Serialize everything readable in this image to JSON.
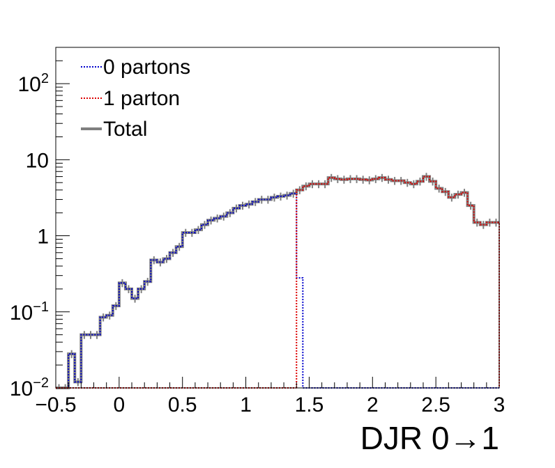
{
  "chart_data": {
    "type": "line",
    "title": "",
    "xlabel": "DJR 0→1",
    "ylabel": "",
    "xlim": [
      -0.5,
      3
    ],
    "ylim": [
      0.01,
      300
    ],
    "yscale": "log",
    "x_tick_labels": [
      "−0.5",
      "0",
      "0.5",
      "1",
      "1.5",
      "2",
      "2.5",
      "3"
    ],
    "x_tick_values": [
      -0.5,
      0,
      0.5,
      1,
      1.5,
      2,
      2.5,
      3
    ],
    "y_ticks": [
      {
        "value": 0.01,
        "base": "10",
        "exp": "−2"
      },
      {
        "value": 0.1,
        "base": "10",
        "exp": "−1"
      },
      {
        "value": 1,
        "base": "1",
        "exp": ""
      },
      {
        "value": 10,
        "base": "10",
        "exp": ""
      },
      {
        "value": 100,
        "base": "10",
        "exp": "2"
      }
    ],
    "legend_position": "top-left",
    "series": [
      {
        "name": "0 partons",
        "color": "#0000cc",
        "style": "dotted",
        "x": [
          -0.475,
          -0.425,
          -0.375,
          -0.325,
          -0.275,
          -0.225,
          -0.175,
          -0.125,
          -0.075,
          -0.025,
          0.025,
          0.075,
          0.125,
          0.175,
          0.225,
          0.275,
          0.325,
          0.375,
          0.425,
          0.475,
          0.525,
          0.575,
          0.625,
          0.675,
          0.725,
          0.775,
          0.825,
          0.875,
          0.925,
          0.975,
          1.025,
          1.075,
          1.125,
          1.175,
          1.225,
          1.275,
          1.325,
          1.375,
          1.425,
          1.475
        ],
        "y": [
          0.01,
          0.01,
          0.028,
          0.012,
          0.05,
          0.05,
          0.05,
          0.085,
          0.09,
          0.12,
          0.24,
          0.2,
          0.15,
          0.2,
          0.25,
          0.48,
          0.45,
          0.5,
          0.6,
          0.72,
          1.1,
          1.1,
          1.2,
          1.4,
          1.6,
          1.7,
          1.8,
          2.0,
          2.3,
          2.5,
          2.6,
          2.8,
          3.0,
          3.0,
          3.2,
          3.3,
          3.4,
          3.6,
          0.28,
          0.01
        ]
      },
      {
        "name": "1 parton",
        "color": "#dd0000",
        "style": "dotted",
        "x": [
          1.425,
          1.475,
          1.525,
          1.575,
          1.625,
          1.675,
          1.725,
          1.775,
          1.825,
          1.875,
          1.925,
          1.975,
          2.025,
          2.075,
          2.125,
          2.175,
          2.225,
          2.275,
          2.325,
          2.375,
          2.425,
          2.475,
          2.525,
          2.575,
          2.625,
          2.675,
          2.725,
          2.775,
          2.825,
          2.875,
          2.925,
          2.975
        ],
        "y": [
          4.0,
          4.5,
          4.8,
          4.8,
          4.8,
          5.8,
          5.6,
          5.5,
          5.6,
          5.6,
          5.5,
          5.4,
          5.6,
          5.8,
          5.5,
          5.3,
          5.3,
          5.0,
          4.8,
          5.2,
          6.0,
          5.2,
          4.2,
          3.8,
          3.2,
          3.5,
          3.7,
          2.5,
          1.5,
          1.4,
          1.5,
          1.5
        ]
      },
      {
        "name": "Total",
        "color": "#7f7f7f",
        "style": "solid",
        "x": [
          -0.475,
          -0.425,
          -0.375,
          -0.325,
          -0.275,
          -0.225,
          -0.175,
          -0.125,
          -0.075,
          -0.025,
          0.025,
          0.075,
          0.125,
          0.175,
          0.225,
          0.275,
          0.325,
          0.375,
          0.425,
          0.475,
          0.525,
          0.575,
          0.625,
          0.675,
          0.725,
          0.775,
          0.825,
          0.875,
          0.925,
          0.975,
          1.025,
          1.075,
          1.125,
          1.175,
          1.225,
          1.275,
          1.325,
          1.375,
          1.425,
          1.475,
          1.525,
          1.575,
          1.625,
          1.675,
          1.725,
          1.775,
          1.825,
          1.875,
          1.925,
          1.975,
          2.025,
          2.075,
          2.125,
          2.175,
          2.225,
          2.275,
          2.325,
          2.375,
          2.425,
          2.475,
          2.525,
          2.575,
          2.625,
          2.675,
          2.725,
          2.775,
          2.825,
          2.875,
          2.925,
          2.975
        ],
        "y": [
          0.01,
          0.01,
          0.028,
          0.012,
          0.05,
          0.05,
          0.05,
          0.085,
          0.09,
          0.12,
          0.24,
          0.2,
          0.15,
          0.2,
          0.25,
          0.48,
          0.45,
          0.5,
          0.6,
          0.72,
          1.1,
          1.1,
          1.2,
          1.4,
          1.6,
          1.7,
          1.8,
          2.0,
          2.3,
          2.5,
          2.6,
          2.8,
          3.0,
          3.0,
          3.2,
          3.3,
          3.4,
          3.6,
          4.0,
          4.5,
          4.8,
          4.8,
          4.8,
          5.8,
          5.6,
          5.5,
          5.6,
          5.6,
          5.5,
          5.4,
          5.6,
          5.8,
          5.5,
          5.3,
          5.3,
          5.0,
          4.8,
          5.2,
          6.0,
          5.2,
          4.2,
          3.8,
          3.2,
          3.5,
          3.7,
          2.5,
          1.5,
          1.4,
          1.5,
          1.5
        ]
      }
    ]
  }
}
